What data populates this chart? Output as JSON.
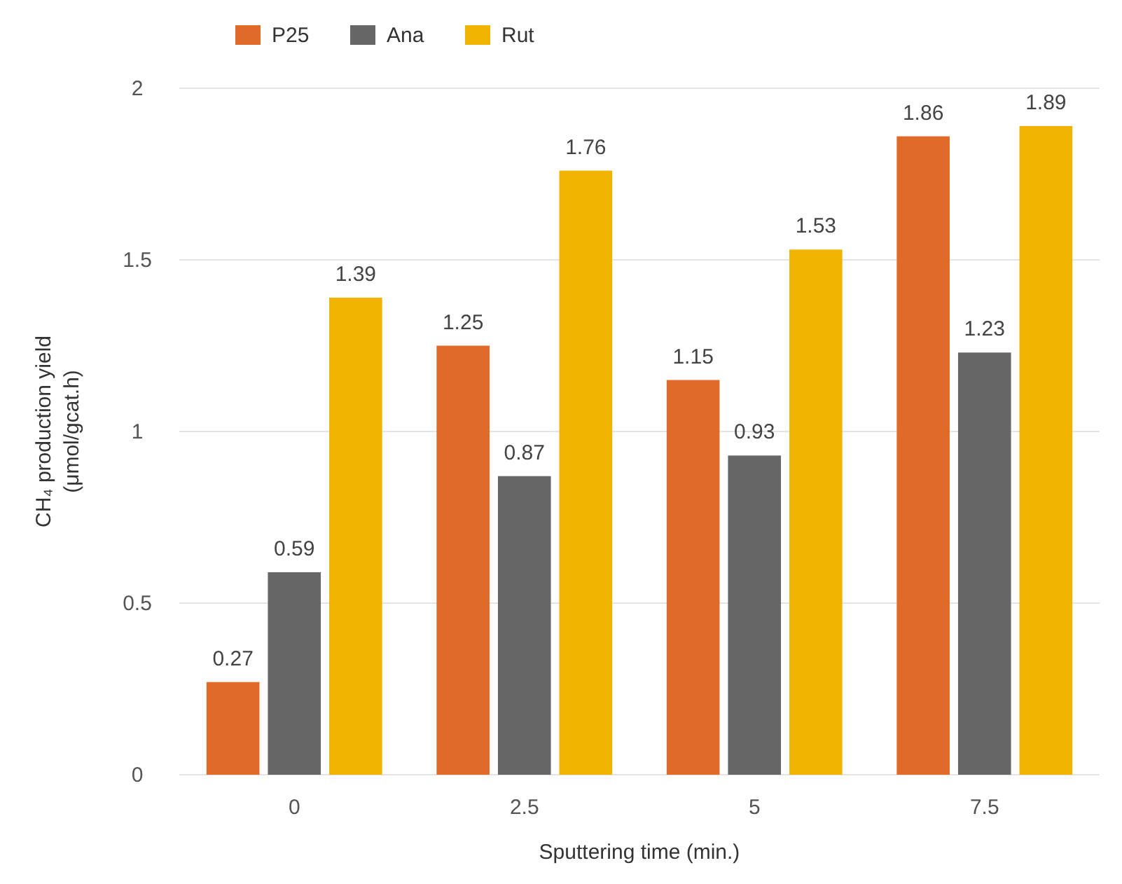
{
  "chart_data": {
    "type": "bar",
    "xlabel": "Sputtering time (min.)",
    "ylabel": "CH₄ production yield (μmol/gcat.h)",
    "categories": [
      "0",
      "2.5",
      "5",
      "7.5"
    ],
    "series": [
      {
        "name": "P25",
        "color": "#e06a28",
        "values": [
          0.27,
          1.25,
          1.15,
          1.86
        ]
      },
      {
        "name": "Ana",
        "color": "#666666",
        "values": [
          0.59,
          0.87,
          0.93,
          1.23
        ]
      },
      {
        "name": "Rut",
        "color": "#f0b400",
        "values": [
          1.39,
          1.76,
          1.53,
          1.89
        ]
      }
    ],
    "ylim": [
      0,
      2
    ],
    "yticks": [
      0,
      0.5,
      1,
      1.5,
      2
    ],
    "grid": "y",
    "legend": "top left",
    "data_labels": true
  }
}
